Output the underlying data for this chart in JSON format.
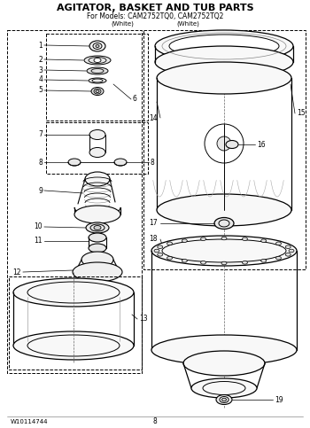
{
  "title": "AGITATOR, BASKET AND TUB PARTS",
  "subtitle": "For Models: CAM2752TQ0, CAM2752TQ2",
  "white_label1": "(White)",
  "white_label2": "(White)",
  "footer_left": "W10114744",
  "footer_center": "8",
  "bg_color": "#ffffff",
  "fig_width": 3.5,
  "fig_height": 4.83,
  "dpi": 100,
  "border_color": "#333333",
  "part_label_fs": 5.5,
  "title_fs": 8.0,
  "subtitle_fs": 5.5
}
